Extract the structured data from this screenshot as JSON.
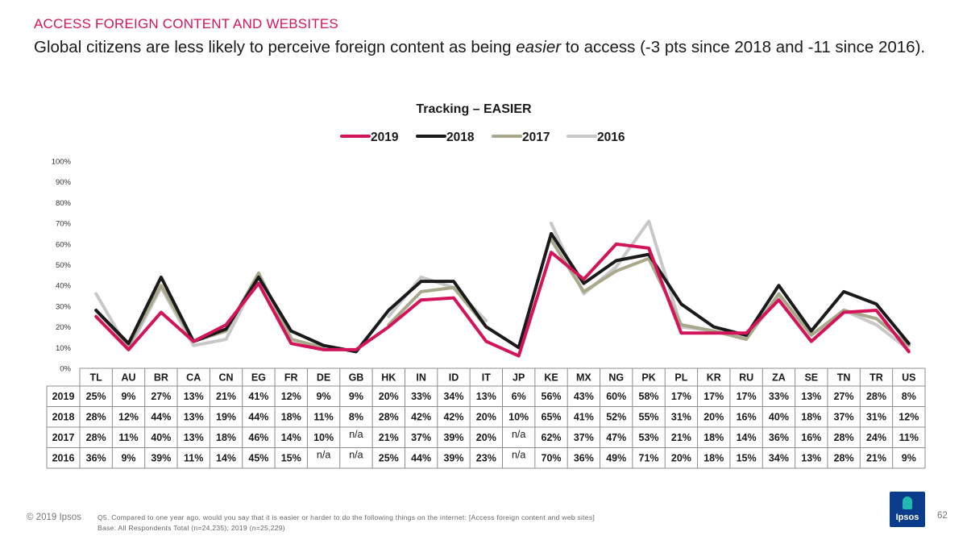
{
  "header": {
    "kicker": "ACCESS FOREIGN CONTENT AND WEBSITES",
    "headline_pre": "Global citizens are less likely to perceive foreign content as being ",
    "headline_em": "easier",
    "headline_post": " to access (-3 pts since 2018 and -11 since 2016)."
  },
  "chart_data": {
    "type": "line",
    "title": "Tracking – EASIER",
    "ylim": [
      0,
      100
    ],
    "y_ticks": [
      "0%",
      "10%",
      "20%",
      "30%",
      "40%",
      "50%",
      "60%",
      "70%",
      "80%",
      "90%",
      "100%"
    ],
    "categories": [
      "TL",
      "AU",
      "BR",
      "CA",
      "CN",
      "EG",
      "FR",
      "DE",
      "GB",
      "HK",
      "IN",
      "ID",
      "IT",
      "JP",
      "KE",
      "MX",
      "NG",
      "PK",
      "PL",
      "KR",
      "RU",
      "ZA",
      "SE",
      "TN",
      "TR",
      "US"
    ],
    "series": [
      {
        "name": "2019",
        "color": "#d4145a",
        "values": [
          25,
          9,
          27,
          13,
          21,
          41,
          12,
          9,
          9,
          20,
          33,
          34,
          13,
          6,
          56,
          43,
          60,
          58,
          17,
          17,
          17,
          33,
          13,
          27,
          28,
          8
        ]
      },
      {
        "name": "2018",
        "color": "#1a1a1a",
        "values": [
          28,
          12,
          44,
          13,
          19,
          44,
          18,
          11,
          8,
          28,
          42,
          42,
          20,
          10,
          65,
          41,
          52,
          55,
          31,
          20,
          16,
          40,
          18,
          37,
          31,
          12
        ]
      },
      {
        "name": "2017",
        "color": "#a8a88a",
        "values": [
          28,
          11,
          40,
          13,
          18,
          46,
          14,
          10,
          null,
          21,
          37,
          39,
          20,
          null,
          62,
          37,
          47,
          53,
          21,
          18,
          14,
          36,
          16,
          28,
          24,
          11
        ]
      },
      {
        "name": "2016",
        "color": "#c8c8c8",
        "values": [
          36,
          9,
          39,
          11,
          14,
          45,
          15,
          null,
          null,
          25,
          44,
          39,
          23,
          null,
          70,
          36,
          49,
          71,
          20,
          18,
          15,
          34,
          13,
          28,
          21,
          9
        ]
      }
    ],
    "table": {
      "na_label": "n/a",
      "rows": [
        {
          "label": "2019",
          "cells": [
            "25%",
            "9%",
            "27%",
            "13%",
            "21%",
            "41%",
            "12%",
            "9%",
            "9%",
            "20%",
            "33%",
            "34%",
            "13%",
            "6%",
            "56%",
            "43%",
            "60%",
            "58%",
            "17%",
            "17%",
            "17%",
            "33%",
            "13%",
            "27%",
            "28%",
            "8%"
          ]
        },
        {
          "label": "2018",
          "cells": [
            "28%",
            "12%",
            "44%",
            "13%",
            "19%",
            "44%",
            "18%",
            "11%",
            "8%",
            "28%",
            "42%",
            "42%",
            "20%",
            "10%",
            "65%",
            "41%",
            "52%",
            "55%",
            "31%",
            "20%",
            "16%",
            "40%",
            "18%",
            "37%",
            "31%",
            "12%"
          ]
        },
        {
          "label": "2017",
          "cells": [
            "28%",
            "11%",
            "40%",
            "13%",
            "18%",
            "46%",
            "14%",
            "10%",
            "n/a",
            "21%",
            "37%",
            "39%",
            "20%",
            "n/a",
            "62%",
            "37%",
            "47%",
            "53%",
            "21%",
            "18%",
            "14%",
            "36%",
            "16%",
            "28%",
            "24%",
            "11%"
          ]
        },
        {
          "label": "2016",
          "cells": [
            "36%",
            "9%",
            "39%",
            "11%",
            "14%",
            "45%",
            "15%",
            "n/a",
            "n/a",
            "25%",
            "44%",
            "39%",
            "23%",
            "n/a",
            "70%",
            "36%",
            "49%",
            "71%",
            "20%",
            "18%",
            "15%",
            "34%",
            "13%",
            "28%",
            "21%",
            "9%"
          ]
        }
      ]
    }
  },
  "footer": {
    "copyright": "© 2019 Ipsos",
    "question": "Q5. Compared to one year ago, would you say that it is easier or harder to do the following things on the internet: [Access foreign content and web sites]",
    "base": "Base: All Respondents Total (n=24,235); 2019 (n=25,229)",
    "logo_text": "Ipsos",
    "page_number": "62"
  }
}
